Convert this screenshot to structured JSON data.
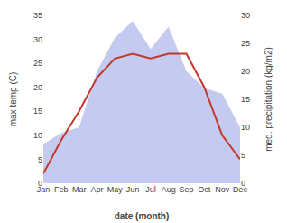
{
  "chart_data": {
    "type": "line",
    "categories": [
      "Jan",
      "Feb",
      "Mar",
      "Apr",
      "May",
      "Jun",
      "Jul",
      "Aug",
      "Sep",
      "Oct",
      "Nov",
      "Dec"
    ],
    "xlabel": "date (month)",
    "ylabel": "max temp (C)",
    "y2label": "med. precipitation (kg/m2)",
    "series": [
      {
        "type": "area",
        "axis": "y2",
        "color": "#c5caf0",
        "values": [
          7,
          9,
          10,
          20,
          26,
          29,
          24,
          28,
          20,
          17,
          16,
          10
        ]
      },
      {
        "type": "line",
        "color": "#c0392b",
        "values": [
          2,
          9,
          15,
          22,
          26,
          27,
          26,
          27,
          27,
          20,
          10,
          5
        ]
      }
    ],
    "ylim": [
      0,
      35
    ],
    "yticks": [
      0,
      5,
      10,
      15,
      20,
      25,
      30,
      35
    ],
    "y2lim": [
      0,
      30
    ],
    "y2ticks": [
      0,
      5,
      10,
      15,
      20,
      25,
      30
    ],
    "grid": false
  }
}
